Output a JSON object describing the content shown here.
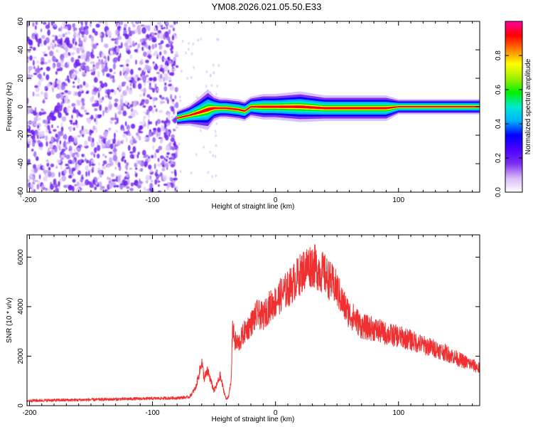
{
  "title": "YM08.2026.021.05.50.E33",
  "colors": {
    "snr_line": "#f03030",
    "speckle": "#7b2ff0",
    "axis": "#000000"
  },
  "chart_data": [
    {
      "type": "heatmap",
      "xlabel": "Height of straight line (km)",
      "ylabel": "Frequency (Hz)",
      "xlim": [
        -202,
        166
      ],
      "ylim": [
        -60,
        60
      ],
      "xticks": [
        -200,
        -100,
        0,
        100
      ],
      "xtick_labels": [
        "-200",
        "-100",
        "0",
        "100"
      ],
      "yticks": [
        -60,
        -40,
        -20,
        0,
        20,
        40,
        60
      ],
      "ytick_labels": [
        "-60",
        "-40",
        "-20",
        "0",
        "20",
        "40",
        "60"
      ],
      "colorbar": {
        "label": "Normalized spectral amplitude",
        "range": [
          0,
          1
        ],
        "ticks": [
          0,
          0.2,
          0.4,
          0.6,
          0.8
        ],
        "tick_labels": [
          "0.0",
          "0.2",
          "0.4",
          "0.6",
          "0.8"
        ],
        "colormap": [
          "#ffffff",
          "#d8b8f8",
          "#7b2ff0",
          "#4b00ff",
          "#0000ff",
          "#00b0ff",
          "#00e8d0",
          "#00f000",
          "#a0f000",
          "#ffff00",
          "#ff8000",
          "#ff0000",
          "#ff00a0"
        ]
      },
      "noise_region": {
        "x_range": [
          -202,
          -80
        ],
        "y_range": [
          -60,
          60
        ]
      },
      "signal_band": {
        "x": [
          -80,
          -70,
          -62,
          -55,
          -50,
          -45,
          -40,
          -30,
          -25,
          -20,
          -10,
          0,
          20,
          40,
          60,
          80,
          90,
          100,
          120,
          166
        ],
        "center_freq": [
          -8,
          -6,
          -4,
          -2,
          -1,
          -1,
          -1,
          -2,
          -3,
          0,
          0,
          0,
          0,
          -1,
          -1,
          -1,
          -1,
          0,
          0,
          0
        ],
        "half_width": [
          3,
          4,
          6,
          8,
          5,
          4,
          4,
          4,
          4,
          4,
          5,
          5,
          6,
          5,
          5,
          5,
          5,
          3,
          3,
          3
        ]
      }
    },
    {
      "type": "line",
      "xlabel": "Height of straight line (km)",
      "ylabel": "SNR (10 * v/v)",
      "xlim": [
        -202,
        166
      ],
      "ylim": [
        0,
        6900
      ],
      "xticks": [
        -200,
        -100,
        0,
        100
      ],
      "xtick_labels": [
        "-200",
        "-100",
        "0",
        "100"
      ],
      "yticks": [
        0,
        2000,
        4000,
        6000
      ],
      "ytick_labels": [
        "0",
        "2000",
        "4000",
        "6000"
      ],
      "series": [
        {
          "name": "SNR",
          "x": [
            -202,
            -180,
            -160,
            -140,
            -120,
            -100,
            -80,
            -70,
            -65,
            -62,
            -60,
            -58,
            -55,
            -52,
            -50,
            -48,
            -45,
            -42,
            -40,
            -38,
            -36,
            -35,
            -33,
            -30,
            -25,
            -20,
            -15,
            -10,
            -5,
            0,
            5,
            10,
            15,
            20,
            25,
            30,
            35,
            40,
            45,
            50,
            55,
            60,
            65,
            70,
            80,
            90,
            100,
            110,
            120,
            130,
            140,
            150,
            160,
            166
          ],
          "values": [
            200,
            220,
            230,
            250,
            270,
            290,
            310,
            350,
            700,
            1300,
            1800,
            1100,
            1400,
            900,
            600,
            800,
            1200,
            600,
            250,
            400,
            1000,
            3200,
            2600,
            2500,
            3000,
            3300,
            3700,
            3600,
            4000,
            4200,
            4500,
            4700,
            5000,
            5300,
            5600,
            5700,
            5500,
            5300,
            5000,
            4700,
            4100,
            3700,
            3500,
            3200,
            3100,
            2900,
            2800,
            2650,
            2450,
            2300,
            2100,
            1850,
            1650,
            1500
          ]
        }
      ]
    }
  ]
}
